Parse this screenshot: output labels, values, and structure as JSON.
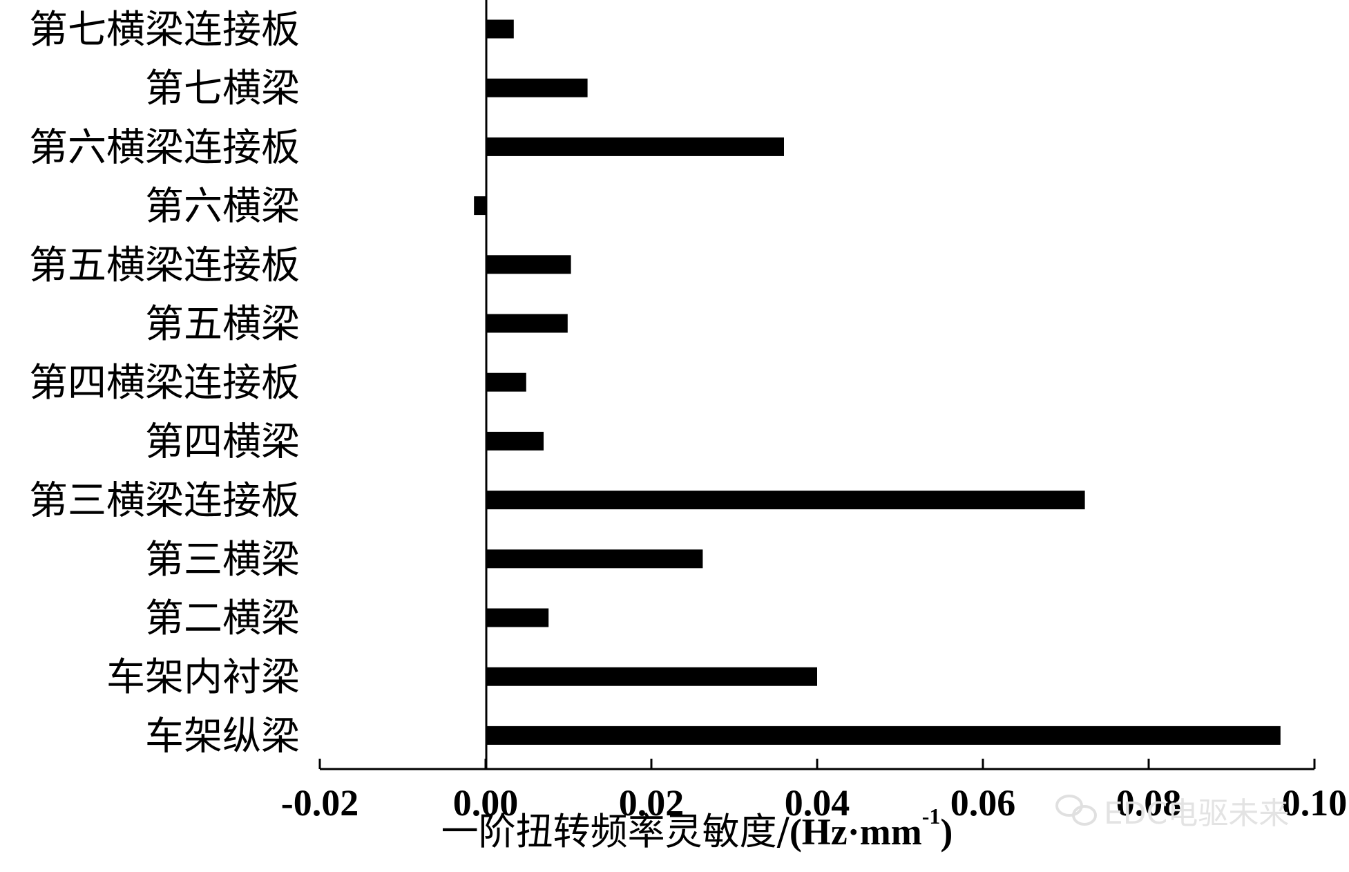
{
  "chart_data": {
    "type": "bar",
    "orientation": "horizontal",
    "categories": [
      "第七横梁连接板",
      "第七横梁",
      "第六横梁连接板",
      "第六横梁",
      "第五横梁连接板",
      "第五横梁",
      "第四横梁连接板",
      "第四横梁",
      "第三横梁连接板",
      "第三横梁",
      "第二横梁",
      "车架内衬梁",
      "车架纵梁"
    ],
    "values": [
      0.0034,
      0.0123,
      0.036,
      -0.0014,
      0.0103,
      0.0099,
      0.0049,
      0.007,
      0.0723,
      0.0262,
      0.0076,
      0.04,
      0.0959
    ],
    "xlim": [
      -0.02,
      0.1
    ],
    "xticks": [
      "-0.02",
      "0.00",
      "0.02",
      "0.04",
      "0.06",
      "0.08",
      "0.10"
    ],
    "xtick_values": [
      -0.02,
      0,
      0.02,
      0.04,
      0.06,
      0.08,
      0.1
    ],
    "xlabel_main": "一阶扭转频率灵敏度/",
    "xlabel_unit": "(Hz·mm",
    "xlabel_sup": "-1",
    "xlabel_close": ")",
    "bar_color": "#000000",
    "grid": false
  },
  "watermark": {
    "text": "EDC电驱未来",
    "icon": "wechat-icon"
  }
}
